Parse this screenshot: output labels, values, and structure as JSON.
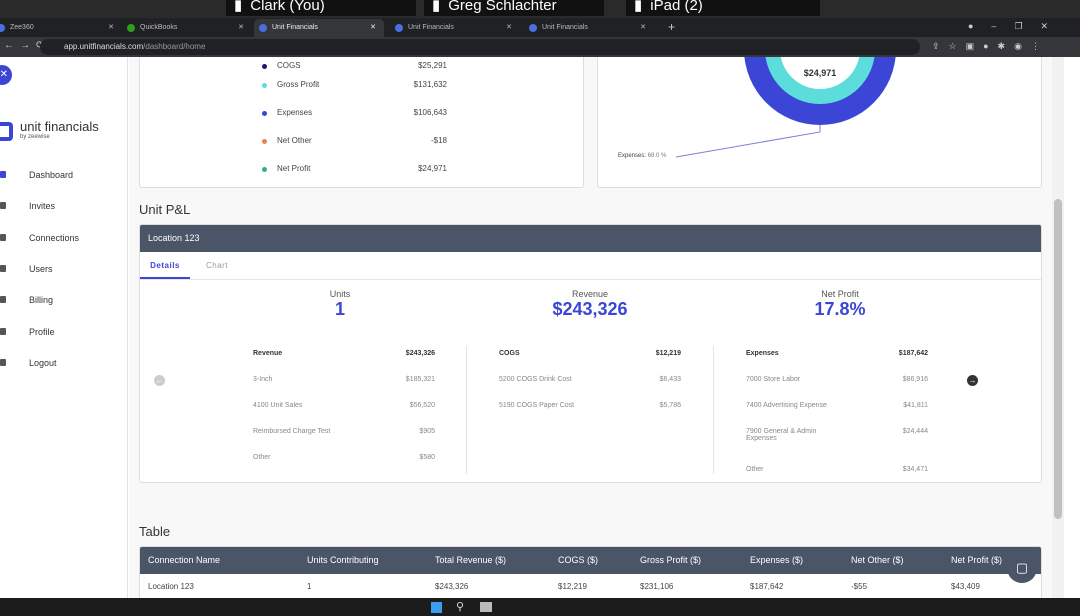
{
  "meeting": {
    "participants": [
      "Clark (You)",
      "Greg Schlachter",
      "iPad (2)"
    ]
  },
  "browser": {
    "tabs": [
      {
        "label": "Zee360"
      },
      {
        "label": "QuickBooks"
      },
      {
        "label": "Unit Financials",
        "active": true
      },
      {
        "label": "Unit Financials"
      },
      {
        "label": "Unit Financials"
      }
    ],
    "url_host": "app.unitfinancials.com",
    "url_path": "/dashboard/home"
  },
  "sidebar": {
    "brand": "unit financials",
    "brand_sub": "by zeewise",
    "items": [
      {
        "label": "Dashboard",
        "active": true
      },
      {
        "label": "Invites"
      },
      {
        "label": "Connections"
      },
      {
        "label": "Users"
      },
      {
        "label": "Billing"
      },
      {
        "label": "Profile"
      },
      {
        "label": "Logout"
      }
    ]
  },
  "summary": {
    "legend": [
      {
        "label": "COGS",
        "value": "$25,291",
        "color": "#1a1a6e"
      },
      {
        "label": "Gross Profit",
        "value": "$131,632",
        "color": "#5ddcdc"
      },
      {
        "label": "Expenses",
        "value": "$106,643",
        "color": "#3b46d6"
      },
      {
        "label": "Net Other",
        "value": "-$18",
        "color": "#e8824e"
      },
      {
        "label": "Net Profit",
        "value": "$24,971",
        "color": "#2db37a"
      }
    ],
    "donut_center": "$24,971",
    "donut_label": "Expenses:",
    "donut_pct": "68.0 %"
  },
  "pnl": {
    "title": "Unit P&L",
    "location": "Location 123",
    "tabs": [
      "Details",
      "Chart"
    ],
    "kpis": [
      {
        "label": "Units",
        "value": "1"
      },
      {
        "label": "Revenue",
        "value": "$243,326"
      },
      {
        "label": "Net Profit",
        "value": "17.8%"
      }
    ],
    "columns": [
      {
        "header": "Revenue",
        "total": "$243,326",
        "rows": [
          [
            "3-Inch",
            "$185,321"
          ],
          [
            "4100 Unit Sales",
            "$56,520"
          ],
          [
            "Reimbursed Charge Test",
            "$905"
          ],
          [
            "Other",
            "$580"
          ]
        ]
      },
      {
        "header": "COGS",
        "total": "$12,219",
        "rows": [
          [
            "5200 COGS Drink Cost",
            "$6,433"
          ],
          [
            "5190 COGS Paper Cost",
            "$5,786"
          ]
        ]
      },
      {
        "header": "Expenses",
        "total": "$187,642",
        "rows": [
          [
            "7000 Store Labor",
            "$86,916"
          ],
          [
            "7400 Advertising Expense",
            "$41,811"
          ],
          [
            "7900 General & Admin Expenses",
            "$24,444"
          ],
          [
            "Other",
            "$34,471"
          ]
        ]
      }
    ]
  },
  "table": {
    "title": "Table",
    "headers": [
      "Connection Name",
      "Units Contributing",
      "Total Revenue ($)",
      "COGS ($)",
      "Gross Profit ($)",
      "Expenses ($)",
      "Net Other ($)",
      "Net Profit ($)"
    ],
    "rows": [
      [
        "Location 123",
        "1",
        "$243,326",
        "$12,219",
        "$231,106",
        "$187,642",
        "-$55",
        "$43,409"
      ]
    ]
  },
  "accent": "#3b46d6",
  "header_bg": "#4a5568"
}
